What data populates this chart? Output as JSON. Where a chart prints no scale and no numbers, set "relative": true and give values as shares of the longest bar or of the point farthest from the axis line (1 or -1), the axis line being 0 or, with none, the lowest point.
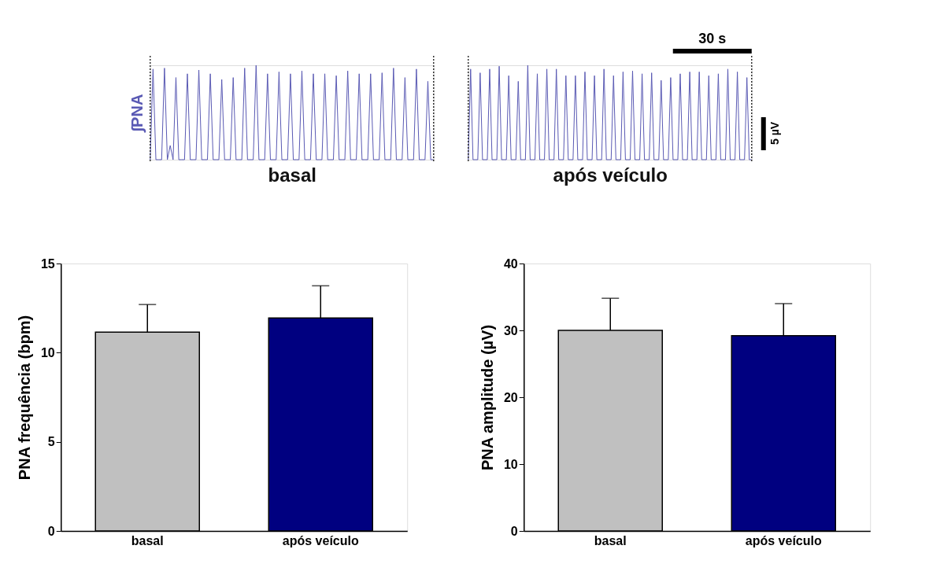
{
  "chart_data": [
    {
      "type": "line",
      "relative": true,
      "ylabel": "∫PNA",
      "xlabel": "basal",
      "categories": [
        null,
        null,
        null,
        null,
        null,
        null,
        null,
        null,
        null,
        null,
        null,
        null,
        null,
        null,
        null,
        null,
        null,
        null,
        null,
        null,
        null,
        null,
        null,
        null,
        null,
        null,
        null,
        null,
        null,
        null,
        null,
        null,
        null,
        null,
        null,
        null,
        null,
        null,
        null,
        null,
        null,
        null,
        null,
        null,
        null,
        null,
        null,
        null,
        null,
        null,
        null,
        null,
        null,
        null,
        null,
        null,
        null,
        null,
        null,
        null,
        null,
        null,
        null,
        null,
        null,
        null,
        null,
        null,
        null,
        null,
        null,
        null,
        null,
        null,
        null,
        null,
        null,
        null,
        null,
        null,
        null,
        null,
        null,
        null,
        null,
        null,
        null,
        null,
        null,
        null,
        null,
        null,
        null,
        null,
        null,
        null,
        null,
        null,
        null,
        null
      ],
      "series": [
        {
          "color": "#5a5ab4",
          "values": [
            0,
            0.96,
            0,
            0,
            0,
            0.97,
            0,
            0.15,
            0,
            0.87,
            0,
            0,
            0,
            0.91,
            0,
            0,
            0,
            0.95,
            0,
            0,
            0,
            0.91,
            0,
            0,
            0,
            0.85,
            0,
            0,
            0,
            0.87,
            0,
            0,
            0,
            0.97,
            0,
            0,
            0,
            1,
            0,
            0,
            0,
            0.91,
            0,
            0,
            0,
            0.93,
            0,
            0,
            0,
            0.91,
            0,
            0,
            0,
            0.94,
            0,
            0,
            0,
            0.91,
            0,
            0,
            0,
            0.91,
            0,
            0,
            0,
            0.89,
            0,
            0,
            0,
            0.94,
            0,
            0,
            0,
            0.91,
            0,
            0,
            0,
            0.91,
            0,
            0,
            0,
            0.92,
            0,
            0,
            0,
            0.97,
            0,
            0,
            0,
            0.87,
            0,
            0,
            0,
            0.96,
            0,
            0,
            0,
            0.83,
            0,
            0
          ]
        }
      ]
    },
    {
      "type": "line",
      "relative": true,
      "xlabel": "após veículo",
      "annotations": [
        "30 s",
        "5 µV"
      ],
      "categories": [
        null,
        null,
        null,
        null,
        null,
        null,
        null,
        null,
        null,
        null,
        null,
        null,
        null,
        null,
        null,
        null,
        null,
        null,
        null,
        null,
        null,
        null,
        null,
        null,
        null,
        null,
        null,
        null,
        null,
        null,
        null,
        null,
        null,
        null,
        null,
        null,
        null,
        null,
        null,
        null,
        null,
        null,
        null,
        null,
        null,
        null,
        null,
        null,
        null,
        null,
        null,
        null,
        null,
        null,
        null,
        null,
        null,
        null,
        null,
        null,
        null,
        null,
        null,
        null,
        null,
        null,
        null,
        null,
        null,
        null,
        null,
        null,
        null,
        null,
        null,
        null,
        null,
        null,
        null,
        null,
        null,
        null,
        null,
        null,
        null,
        null,
        null,
        null,
        null,
        null,
        null,
        null,
        null,
        null,
        null,
        null,
        null,
        null,
        null,
        null,
        null,
        null,
        null,
        null,
        null,
        null,
        null,
        null,
        null,
        null,
        null,
        null,
        null,
        null,
        null,
        null,
        null,
        null,
        null,
        null
      ],
      "series": [
        {
          "color": "#5a5ab4",
          "values": [
            0,
            0.96,
            0,
            0,
            0,
            0.92,
            0,
            0,
            0,
            0.96,
            0,
            0,
            0,
            0.99,
            0,
            0,
            0,
            0.89,
            0,
            0,
            0,
            0.83,
            0,
            0,
            0,
            1,
            0,
            0,
            0,
            0.91,
            0,
            0,
            0,
            0.96,
            0,
            0,
            0,
            0.96,
            0,
            0,
            0,
            0.89,
            0,
            0,
            0,
            0.89,
            0,
            0,
            0,
            0.93,
            0,
            0,
            0,
            0.89,
            0,
            0,
            0,
            0.96,
            0,
            0,
            0,
            0.89,
            0,
            0,
            0,
            0.93,
            0,
            0,
            0,
            0.94,
            0,
            0,
            0,
            0.91,
            0,
            0,
            0,
            0.92,
            0,
            0,
            0,
            0.84,
            0,
            0,
            0,
            0.87,
            0,
            0,
            0,
            0.91,
            0,
            0,
            0,
            0.93,
            0,
            0,
            0,
            0.93,
            0,
            0,
            0,
            0.89,
            0,
            0,
            0,
            0.91,
            0,
            0,
            0,
            0.96,
            0,
            0,
            0,
            0.93,
            0,
            0,
            0,
            0.87,
            0,
            0
          ]
        }
      ]
    },
    {
      "type": "bar",
      "ylabel": "PNA frequência (bpm)",
      "categories": [
        "basal",
        "após veículo"
      ],
      "values": [
        11.15,
        11.95
      ],
      "colors": [
        "#c0c0c0",
        "#000080"
      ],
      "errors": [
        [
          11.15,
          12.7
        ],
        [
          11.95,
          13.75
        ]
      ],
      "ylim": [
        0,
        15
      ],
      "yticks": [
        0,
        5,
        10,
        15
      ]
    },
    {
      "type": "bar",
      "ylabel": "PNA amplitude (µV)",
      "categories": [
        "basal",
        "após veículo"
      ],
      "values": [
        30.0,
        29.2
      ],
      "colors": [
        "#c0c0c0",
        "#000080"
      ],
      "errors": [
        [
          30.0,
          34.8
        ],
        [
          29.2,
          34.0
        ]
      ],
      "ylim": [
        0,
        40
      ],
      "yticks": [
        0,
        10,
        20,
        30,
        40
      ]
    }
  ]
}
